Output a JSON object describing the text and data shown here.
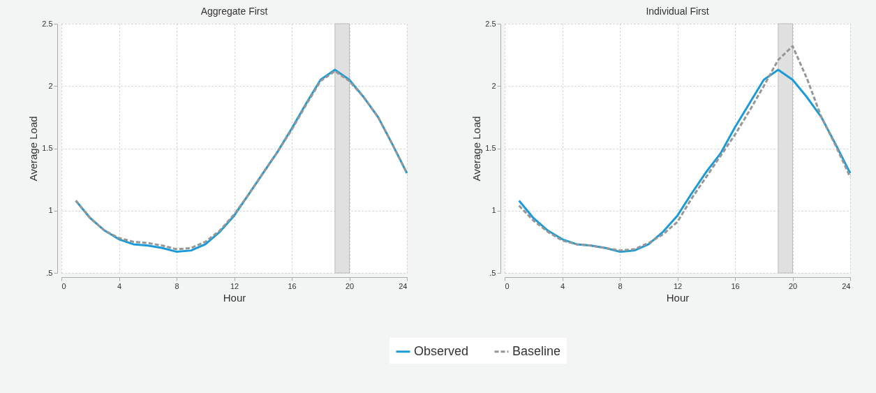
{
  "chart_data": [
    {
      "type": "line",
      "title": "Aggregate First",
      "xlabel": "Hour",
      "ylabel": "Average Load",
      "x": [
        1,
        2,
        3,
        4,
        5,
        6,
        7,
        8,
        9,
        10,
        11,
        12,
        13,
        14,
        15,
        16,
        17,
        18,
        19,
        20,
        21,
        22,
        23,
        24
      ],
      "series": [
        {
          "name": "Observed",
          "color": "#1a9bd7",
          "line_style": "solid",
          "values": [
            1.08,
            0.94,
            0.84,
            0.77,
            0.73,
            0.72,
            0.7,
            0.67,
            0.68,
            0.73,
            0.83,
            0.96,
            1.13,
            1.3,
            1.47,
            1.66,
            1.86,
            2.05,
            2.13,
            2.05,
            1.91,
            1.75,
            1.53,
            1.3
          ]
        },
        {
          "name": "Baseline",
          "color": "#969696",
          "line_style": "dashed",
          "values": [
            1.08,
            0.94,
            0.84,
            0.78,
            0.75,
            0.74,
            0.72,
            0.69,
            0.7,
            0.75,
            0.84,
            0.97,
            1.13,
            1.3,
            1.47,
            1.65,
            1.85,
            2.04,
            2.12,
            2.04,
            1.91,
            1.75,
            1.53,
            1.3
          ]
        }
      ],
      "bands": [
        {
          "axis": "x",
          "from": 19,
          "to": 20,
          "color": "#e0e0e0"
        }
      ],
      "xlim": [
        0,
        24
      ],
      "xticks": [
        0,
        4,
        8,
        12,
        16,
        20,
        24
      ],
      "ylim": [
        0.5,
        2.5
      ],
      "yticks": [
        {
          "value": 0.5,
          "label": ".5"
        },
        1,
        1.5,
        2,
        2.5
      ],
      "grid": true,
      "legend": "bottom"
    },
    {
      "type": "line",
      "title": "Individual First",
      "xlabel": "Hour",
      "ylabel": "Average Load",
      "x": [
        1,
        2,
        3,
        4,
        5,
        6,
        7,
        8,
        9,
        10,
        11,
        12,
        13,
        14,
        15,
        16,
        17,
        18,
        19,
        20,
        21,
        22,
        23,
        24
      ],
      "series": [
        {
          "name": "Observed",
          "color": "#1a9bd7",
          "line_style": "solid",
          "values": [
            1.08,
            0.94,
            0.84,
            0.77,
            0.73,
            0.72,
            0.7,
            0.67,
            0.68,
            0.73,
            0.83,
            0.96,
            1.14,
            1.31,
            1.46,
            1.67,
            1.86,
            2.05,
            2.13,
            2.05,
            1.91,
            1.75,
            1.53,
            1.3
          ]
        },
        {
          "name": "Baseline",
          "color": "#969696",
          "line_style": "dashed",
          "values": [
            1.04,
            0.92,
            0.83,
            0.76,
            0.73,
            0.72,
            0.7,
            0.68,
            0.69,
            0.74,
            0.81,
            0.91,
            1.1,
            1.27,
            1.44,
            1.61,
            1.8,
            2.0,
            2.21,
            2.32,
            2.06,
            1.75,
            1.52,
            1.27
          ]
        }
      ],
      "bands": [
        {
          "axis": "x",
          "from": 19,
          "to": 20,
          "color": "#e0e0e0"
        }
      ],
      "xlim": [
        0,
        24
      ],
      "xticks": [
        0,
        4,
        8,
        12,
        16,
        20,
        24
      ],
      "ylim": [
        0.5,
        2.5
      ],
      "yticks": [
        {
          "value": 0.5,
          "label": ".5"
        },
        1,
        1.5,
        2,
        2.5
      ],
      "grid": true,
      "legend": "bottom"
    }
  ]
}
